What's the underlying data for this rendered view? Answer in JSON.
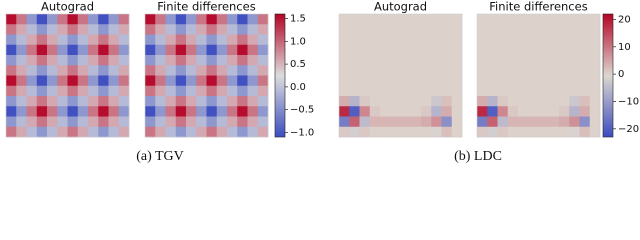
{
  "figures": [
    {
      "caption": "(a) TGV",
      "cmap": [
        "#3b4cc0",
        "#dddddd",
        "#b40426"
      ],
      "vlim": [
        -1.1,
        1.6
      ],
      "ticks": [
        {
          "value": 1.5,
          "label": "1.5"
        },
        {
          "value": 1.0,
          "label": "1.0"
        },
        {
          "value": 0.5,
          "label": "0.5"
        },
        {
          "value": 0.0,
          "label": "0.0"
        },
        {
          "value": -0.5,
          "label": "−0.5"
        },
        {
          "value": -1.0,
          "label": "−1.0"
        }
      ],
      "panels": [
        {
          "title": "Autograd",
          "grid": [
            [
              1.55,
              0.9,
              -0.4,
              -1.05,
              -0.4,
              0.9,
              1.55,
              0.9,
              -0.4,
              -1.05,
              -0.4,
              0.9
            ],
            [
              0.9,
              0.58,
              -0.08,
              -0.4,
              -0.08,
              0.58,
              0.9,
              0.58,
              -0.08,
              -0.4,
              -0.08,
              0.58
            ],
            [
              -0.4,
              -0.08,
              0.58,
              0.9,
              0.58,
              -0.08,
              -0.4,
              -0.08,
              0.58,
              0.9,
              0.58,
              -0.08
            ],
            [
              -1.05,
              -0.4,
              0.9,
              1.55,
              0.9,
              -0.4,
              -1.05,
              -0.4,
              0.9,
              1.55,
              0.9,
              -0.4
            ],
            [
              -0.4,
              -0.08,
              0.58,
              0.9,
              0.58,
              -0.08,
              -0.4,
              -0.08,
              0.58,
              0.9,
              0.58,
              -0.08
            ],
            [
              0.9,
              0.58,
              -0.08,
              -0.4,
              -0.08,
              0.58,
              0.9,
              0.58,
              -0.08,
              -0.4,
              -0.08,
              0.58
            ],
            [
              1.55,
              0.9,
              -0.4,
              -1.05,
              -0.4,
              0.9,
              1.55,
              0.9,
              -0.4,
              -1.05,
              -0.4,
              0.9
            ],
            [
              0.9,
              0.58,
              -0.08,
              -0.4,
              -0.08,
              0.58,
              0.9,
              0.58,
              -0.08,
              -0.4,
              -0.08,
              0.58
            ],
            [
              -0.4,
              -0.08,
              0.58,
              0.9,
              0.58,
              -0.08,
              -0.4,
              -0.08,
              0.58,
              0.9,
              0.58,
              -0.08
            ],
            [
              -1.05,
              -0.4,
              0.9,
              1.55,
              0.9,
              -0.4,
              -1.05,
              -0.4,
              0.9,
              1.55,
              0.9,
              -0.4
            ],
            [
              -0.4,
              -0.08,
              0.58,
              0.9,
              0.58,
              -0.08,
              -0.4,
              -0.08,
              0.58,
              0.9,
              0.58,
              -0.08
            ],
            [
              0.9,
              0.58,
              -0.08,
              -0.4,
              -0.08,
              0.58,
              0.9,
              0.58,
              -0.08,
              -0.4,
              -0.08,
              0.58
            ]
          ]
        },
        {
          "title": "Finite differences",
          "grid": [
            [
              1.55,
              0.9,
              -0.4,
              -1.05,
              -0.4,
              0.9,
              1.55,
              0.9,
              -0.4,
              -1.05,
              -0.4,
              0.9
            ],
            [
              0.9,
              0.58,
              -0.08,
              -0.4,
              -0.08,
              0.58,
              0.9,
              0.58,
              -0.08,
              -0.4,
              -0.08,
              0.58
            ],
            [
              -0.4,
              -0.08,
              0.58,
              0.9,
              0.58,
              -0.08,
              -0.4,
              -0.08,
              0.58,
              0.9,
              0.58,
              -0.08
            ],
            [
              -1.05,
              -0.4,
              0.9,
              1.55,
              0.9,
              -0.4,
              -1.05,
              -0.4,
              0.9,
              1.55,
              0.9,
              -0.4
            ],
            [
              -0.4,
              -0.08,
              0.58,
              0.9,
              0.58,
              -0.08,
              -0.4,
              -0.08,
              0.58,
              0.9,
              0.58,
              -0.08
            ],
            [
              0.9,
              0.58,
              -0.08,
              -0.4,
              -0.08,
              0.58,
              0.9,
              0.58,
              -0.08,
              -0.4,
              -0.08,
              0.58
            ],
            [
              1.55,
              0.9,
              -0.4,
              -1.05,
              -0.4,
              0.9,
              1.55,
              0.9,
              -0.4,
              -1.05,
              -0.4,
              0.9
            ],
            [
              0.9,
              0.58,
              -0.08,
              -0.4,
              -0.08,
              0.58,
              0.9,
              0.58,
              -0.08,
              -0.4,
              -0.08,
              0.58
            ],
            [
              -0.4,
              -0.08,
              0.58,
              0.9,
              0.58,
              -0.08,
              -0.4,
              -0.08,
              0.58,
              0.9,
              0.58,
              -0.08
            ],
            [
              -1.05,
              -0.4,
              0.9,
              1.55,
              0.9,
              -0.4,
              -1.05,
              -0.4,
              0.9,
              1.55,
              0.9,
              -0.4
            ],
            [
              -0.4,
              -0.08,
              0.58,
              0.9,
              0.58,
              -0.08,
              -0.4,
              -0.08,
              0.58,
              0.9,
              0.58,
              -0.08
            ],
            [
              0.9,
              0.58,
              -0.08,
              -0.4,
              -0.08,
              0.58,
              0.9,
              0.58,
              -0.08,
              -0.4,
              -0.08,
              0.58
            ]
          ]
        }
      ]
    },
    {
      "caption": "(b) LDC",
      "cmap": [
        "#3b4cc0",
        "#ddd6cf",
        "#b40426"
      ],
      "vlim": [
        -23,
        22
      ],
      "ticks": [
        20,
        10,
        0,
        {
          "value": -10,
          "label": "−10"
        },
        {
          "value": -20,
          "label": "−20"
        }
      ],
      "panels": [
        {
          "title": "Autograd",
          "grid": [
            [
              0,
              0,
              0,
              0,
              0,
              0,
              0,
              0,
              0,
              0,
              0,
              0
            ],
            [
              0,
              0,
              0,
              0,
              0,
              0,
              0,
              0,
              0,
              0,
              0,
              0
            ],
            [
              0,
              0,
              0,
              0,
              0,
              0,
              0,
              0,
              0,
              0,
              0,
              0
            ],
            [
              0,
              0,
              0,
              0,
              0,
              0,
              0,
              0,
              0,
              0,
              0,
              0
            ],
            [
              0,
              0,
              0,
              0,
              0,
              0,
              0,
              0,
              0,
              0,
              0,
              0
            ],
            [
              0,
              0,
              0,
              0,
              0,
              0,
              0,
              0,
              0,
              0,
              0,
              0
            ],
            [
              0,
              0,
              0,
              0,
              0,
              0,
              0,
              0,
              0,
              0,
              0,
              0
            ],
            [
              0,
              0,
              0,
              0,
              0,
              0,
              0,
              0,
              0,
              0,
              0,
              0
            ],
            [
              4,
              -6,
              1,
              0,
              0,
              0,
              0,
              0,
              0,
              -3,
              2,
              0
            ],
            [
              18,
              -20,
              8,
              1,
              0,
              0,
              0,
              0,
              1,
              -6,
              4,
              0
            ],
            [
              -15,
              12,
              -5,
              3,
              3,
              3,
              3,
              3,
              4,
              7,
              -12,
              0
            ],
            [
              1,
              -2,
              1,
              0,
              0,
              0,
              0,
              0,
              0,
              -1,
              2,
              0
            ]
          ]
        },
        {
          "title": "Finite differences",
          "grid": [
            [
              0,
              0,
              0,
              0,
              0,
              0,
              0,
              0,
              0,
              0,
              0,
              0
            ],
            [
              0,
              0,
              0,
              0,
              0,
              0,
              0,
              0,
              0,
              0,
              0,
              0
            ],
            [
              0,
              0,
              0,
              0,
              0,
              0,
              0,
              0,
              0,
              0,
              0,
              0
            ],
            [
              0,
              0,
              0,
              0,
              0,
              0,
              0,
              0,
              0,
              0,
              0,
              0
            ],
            [
              0,
              0,
              0,
              0,
              0,
              0,
              0,
              0,
              0,
              0,
              0,
              0
            ],
            [
              0,
              0,
              0,
              0,
              0,
              0,
              0,
              0,
              0,
              0,
              0,
              0
            ],
            [
              0,
              0,
              0,
              0,
              0,
              0,
              0,
              0,
              0,
              0,
              0,
              0
            ],
            [
              0,
              0,
              0,
              0,
              0,
              0,
              0,
              0,
              0,
              0,
              0,
              0
            ],
            [
              4,
              -6,
              1,
              0,
              0,
              0,
              0,
              0,
              0,
              -3,
              2,
              0
            ],
            [
              18,
              -20,
              8,
              1,
              0,
              0,
              0,
              0,
              1,
              -6,
              4,
              0
            ],
            [
              -15,
              12,
              -5,
              3,
              3,
              3,
              3,
              3,
              4,
              7,
              -12,
              0
            ],
            [
              1,
              -2,
              1,
              0,
              0,
              0,
              0,
              0,
              0,
              -1,
              2,
              0
            ]
          ]
        }
      ]
    }
  ]
}
